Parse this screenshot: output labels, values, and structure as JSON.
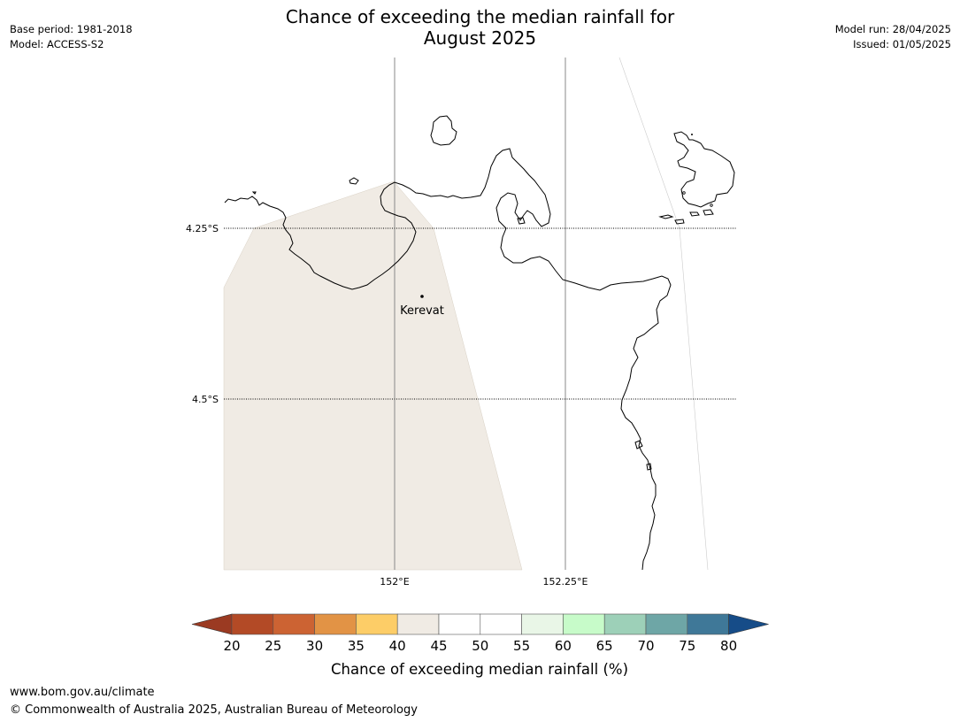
{
  "header": {
    "title_line1": "Chance of exceeding the median rainfall for",
    "title_line2": "August 2025",
    "base_period": "Base period: 1981-2018",
    "model": "Model: ACCESS-S2",
    "model_run": "Model run: 28/04/2025",
    "issued": "Issued: 01/05/2025"
  },
  "map": {
    "lat_labels": [
      "4.25°S",
      "4.5°S"
    ],
    "lon_labels": [
      "152°E",
      "152.25°E"
    ],
    "place": {
      "name": "Kerevat"
    },
    "shaded_region_band": "40-45",
    "shaded_color": "#f0ebe4"
  },
  "colorbar": {
    "ticks": [
      "20",
      "25",
      "30",
      "35",
      "40",
      "45",
      "50",
      "55",
      "60",
      "65",
      "70",
      "75",
      "80"
    ],
    "under_color": "#9b3a22",
    "colors": [
      "#b34a26",
      "#cc6333",
      "#e29345",
      "#fdcd67",
      "#f0ebe4",
      "#ffffff",
      "#ffffff",
      "#e9f6e7",
      "#c7fbc9",
      "#9dd0b8",
      "#6ea6a6",
      "#3f7898"
    ],
    "over_color": "#164c88",
    "label": "Chance of exceeding median rainfall (%)"
  },
  "footer": {
    "url": "www.bom.gov.au/climate",
    "copyright": "© Commonwealth of Australia 2025, Australian Bureau of Meteorology"
  }
}
